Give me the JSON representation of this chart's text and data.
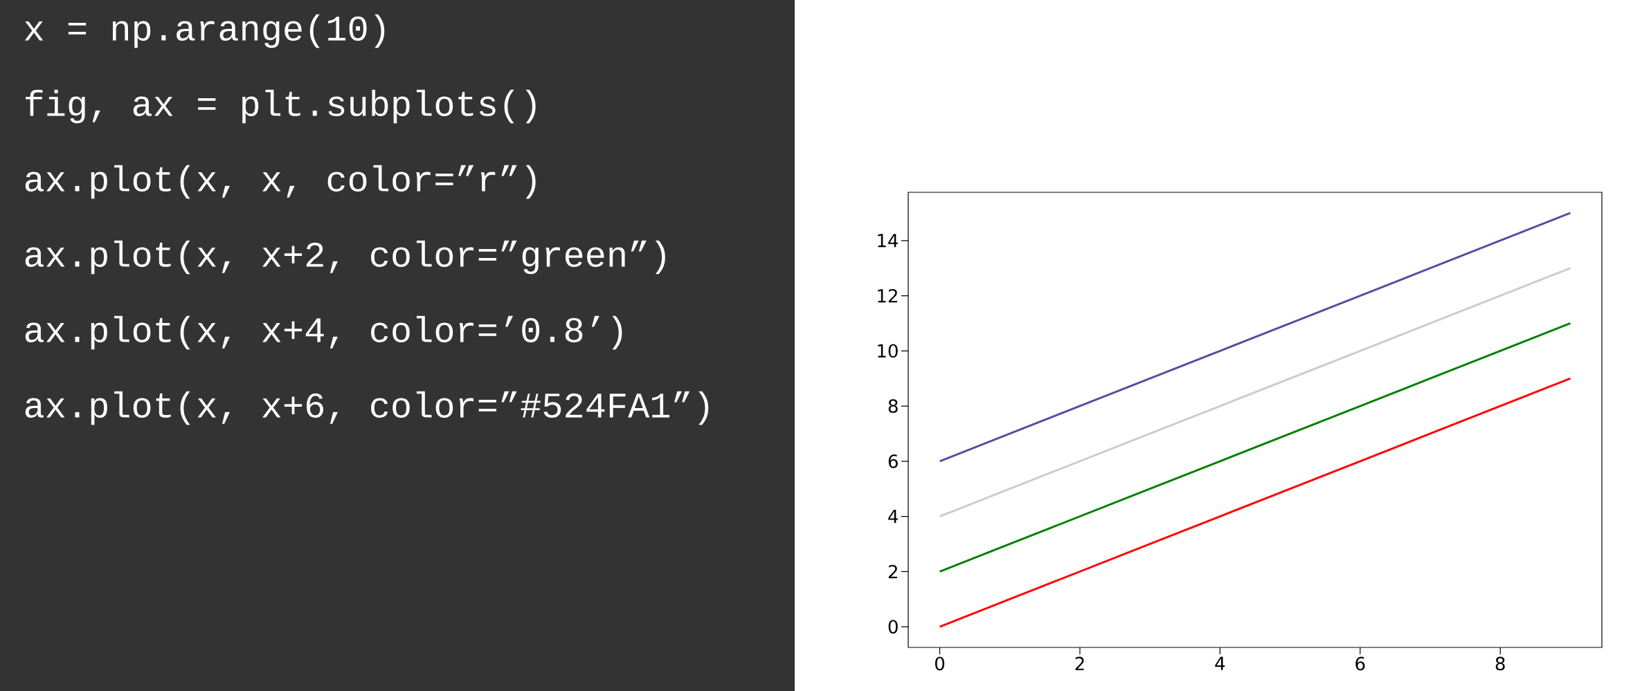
{
  "chart_data": [
    {
      "type": "other",
      "annotations": [
        "x = np.arange(10)",
        "fig, ax = plt.subplots()",
        "ax.plot(x, x, color=”r”)",
        "ax.plot(x, x+2, color=”green”)",
        "ax.plot(x, x+4, color=’0.8’)",
        "ax.plot(x, x+6, color=”#524FA1”)"
      ]
    },
    {
      "type": "line",
      "x": [
        0,
        1,
        2,
        3,
        4,
        5,
        6,
        7,
        8,
        9
      ],
      "xlim": [
        -0.45,
        9.45
      ],
      "ylim": [
        -0.75,
        15.75
      ],
      "xticks": [
        0,
        2,
        4,
        6,
        8
      ],
      "yticks": [
        0,
        2,
        4,
        6,
        8,
        10,
        12,
        14
      ],
      "series": [
        {
          "color": "#ff0000",
          "values": [
            0,
            1,
            2,
            3,
            4,
            5,
            6,
            7,
            8,
            9
          ]
        },
        {
          "color": "#008000",
          "values": [
            2,
            3,
            4,
            5,
            6,
            7,
            8,
            9,
            10,
            11
          ]
        },
        {
          "color": "#cccccc",
          "values": [
            4,
            5,
            6,
            7,
            8,
            9,
            10,
            11,
            12,
            13
          ]
        },
        {
          "color": "#524fa1",
          "values": [
            6,
            7,
            8,
            9,
            10,
            11,
            12,
            13,
            14,
            15
          ]
        }
      ]
    }
  ]
}
